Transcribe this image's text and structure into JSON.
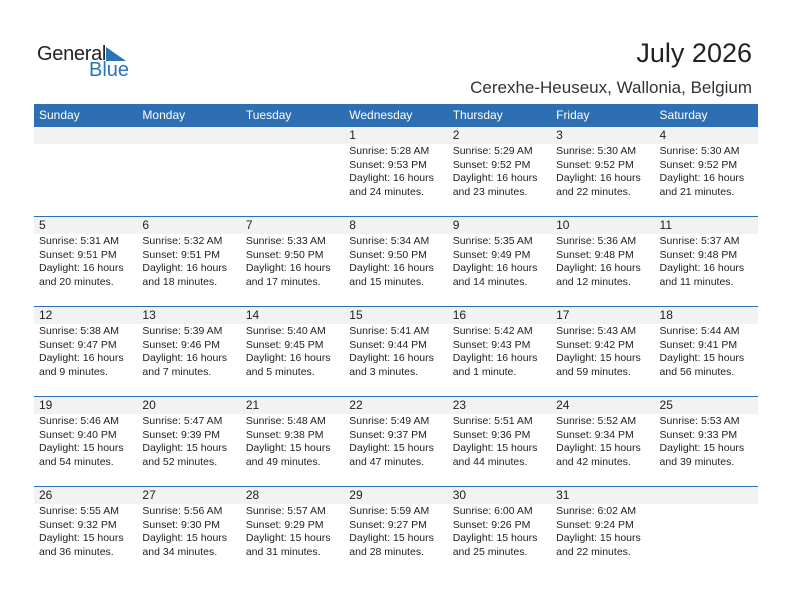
{
  "logo": {
    "text1": "General",
    "text2": "Blue"
  },
  "title": "July 2026",
  "location": "Cerexhe-Heuseux, Wallonia, Belgium",
  "colors": {
    "header": "#2d6fb2",
    "brand": "#2a74b8",
    "date_band": "#f2f2f2"
  },
  "weekdays": [
    "Sunday",
    "Monday",
    "Tuesday",
    "Wednesday",
    "Thursday",
    "Friday",
    "Saturday"
  ],
  "weeks": [
    [
      null,
      null,
      null,
      {
        "day": "1",
        "sunrise": "Sunrise: 5:28 AM",
        "sunset": "Sunset: 9:53 PM",
        "daylight1": "Daylight: 16 hours",
        "daylight2": "and 24 minutes."
      },
      {
        "day": "2",
        "sunrise": "Sunrise: 5:29 AM",
        "sunset": "Sunset: 9:52 PM",
        "daylight1": "Daylight: 16 hours",
        "daylight2": "and 23 minutes."
      },
      {
        "day": "3",
        "sunrise": "Sunrise: 5:30 AM",
        "sunset": "Sunset: 9:52 PM",
        "daylight1": "Daylight: 16 hours",
        "daylight2": "and 22 minutes."
      },
      {
        "day": "4",
        "sunrise": "Sunrise: 5:30 AM",
        "sunset": "Sunset: 9:52 PM",
        "daylight1": "Daylight: 16 hours",
        "daylight2": "and 21 minutes."
      }
    ],
    [
      {
        "day": "5",
        "sunrise": "Sunrise: 5:31 AM",
        "sunset": "Sunset: 9:51 PM",
        "daylight1": "Daylight: 16 hours",
        "daylight2": "and 20 minutes."
      },
      {
        "day": "6",
        "sunrise": "Sunrise: 5:32 AM",
        "sunset": "Sunset: 9:51 PM",
        "daylight1": "Daylight: 16 hours",
        "daylight2": "and 18 minutes."
      },
      {
        "day": "7",
        "sunrise": "Sunrise: 5:33 AM",
        "sunset": "Sunset: 9:50 PM",
        "daylight1": "Daylight: 16 hours",
        "daylight2": "and 17 minutes."
      },
      {
        "day": "8",
        "sunrise": "Sunrise: 5:34 AM",
        "sunset": "Sunset: 9:50 PM",
        "daylight1": "Daylight: 16 hours",
        "daylight2": "and 15 minutes."
      },
      {
        "day": "9",
        "sunrise": "Sunrise: 5:35 AM",
        "sunset": "Sunset: 9:49 PM",
        "daylight1": "Daylight: 16 hours",
        "daylight2": "and 14 minutes."
      },
      {
        "day": "10",
        "sunrise": "Sunrise: 5:36 AM",
        "sunset": "Sunset: 9:48 PM",
        "daylight1": "Daylight: 16 hours",
        "daylight2": "and 12 minutes."
      },
      {
        "day": "11",
        "sunrise": "Sunrise: 5:37 AM",
        "sunset": "Sunset: 9:48 PM",
        "daylight1": "Daylight: 16 hours",
        "daylight2": "and 11 minutes."
      }
    ],
    [
      {
        "day": "12",
        "sunrise": "Sunrise: 5:38 AM",
        "sunset": "Sunset: 9:47 PM",
        "daylight1": "Daylight: 16 hours",
        "daylight2": "and 9 minutes."
      },
      {
        "day": "13",
        "sunrise": "Sunrise: 5:39 AM",
        "sunset": "Sunset: 9:46 PM",
        "daylight1": "Daylight: 16 hours",
        "daylight2": "and 7 minutes."
      },
      {
        "day": "14",
        "sunrise": "Sunrise: 5:40 AM",
        "sunset": "Sunset: 9:45 PM",
        "daylight1": "Daylight: 16 hours",
        "daylight2": "and 5 minutes."
      },
      {
        "day": "15",
        "sunrise": "Sunrise: 5:41 AM",
        "sunset": "Sunset: 9:44 PM",
        "daylight1": "Daylight: 16 hours",
        "daylight2": "and 3 minutes."
      },
      {
        "day": "16",
        "sunrise": "Sunrise: 5:42 AM",
        "sunset": "Sunset: 9:43 PM",
        "daylight1": "Daylight: 16 hours",
        "daylight2": "and 1 minute."
      },
      {
        "day": "17",
        "sunrise": "Sunrise: 5:43 AM",
        "sunset": "Sunset: 9:42 PM",
        "daylight1": "Daylight: 15 hours",
        "daylight2": "and 59 minutes."
      },
      {
        "day": "18",
        "sunrise": "Sunrise: 5:44 AM",
        "sunset": "Sunset: 9:41 PM",
        "daylight1": "Daylight: 15 hours",
        "daylight2": "and 56 minutes."
      }
    ],
    [
      {
        "day": "19",
        "sunrise": "Sunrise: 5:46 AM",
        "sunset": "Sunset: 9:40 PM",
        "daylight1": "Daylight: 15 hours",
        "daylight2": "and 54 minutes."
      },
      {
        "day": "20",
        "sunrise": "Sunrise: 5:47 AM",
        "sunset": "Sunset: 9:39 PM",
        "daylight1": "Daylight: 15 hours",
        "daylight2": "and 52 minutes."
      },
      {
        "day": "21",
        "sunrise": "Sunrise: 5:48 AM",
        "sunset": "Sunset: 9:38 PM",
        "daylight1": "Daylight: 15 hours",
        "daylight2": "and 49 minutes."
      },
      {
        "day": "22",
        "sunrise": "Sunrise: 5:49 AM",
        "sunset": "Sunset: 9:37 PM",
        "daylight1": "Daylight: 15 hours",
        "daylight2": "and 47 minutes."
      },
      {
        "day": "23",
        "sunrise": "Sunrise: 5:51 AM",
        "sunset": "Sunset: 9:36 PM",
        "daylight1": "Daylight: 15 hours",
        "daylight2": "and 44 minutes."
      },
      {
        "day": "24",
        "sunrise": "Sunrise: 5:52 AM",
        "sunset": "Sunset: 9:34 PM",
        "daylight1": "Daylight: 15 hours",
        "daylight2": "and 42 minutes."
      },
      {
        "day": "25",
        "sunrise": "Sunrise: 5:53 AM",
        "sunset": "Sunset: 9:33 PM",
        "daylight1": "Daylight: 15 hours",
        "daylight2": "and 39 minutes."
      }
    ],
    [
      {
        "day": "26",
        "sunrise": "Sunrise: 5:55 AM",
        "sunset": "Sunset: 9:32 PM",
        "daylight1": "Daylight: 15 hours",
        "daylight2": "and 36 minutes."
      },
      {
        "day": "27",
        "sunrise": "Sunrise: 5:56 AM",
        "sunset": "Sunset: 9:30 PM",
        "daylight1": "Daylight: 15 hours",
        "daylight2": "and 34 minutes."
      },
      {
        "day": "28",
        "sunrise": "Sunrise: 5:57 AM",
        "sunset": "Sunset: 9:29 PM",
        "daylight1": "Daylight: 15 hours",
        "daylight2": "and 31 minutes."
      },
      {
        "day": "29",
        "sunrise": "Sunrise: 5:59 AM",
        "sunset": "Sunset: 9:27 PM",
        "daylight1": "Daylight: 15 hours",
        "daylight2": "and 28 minutes."
      },
      {
        "day": "30",
        "sunrise": "Sunrise: 6:00 AM",
        "sunset": "Sunset: 9:26 PM",
        "daylight1": "Daylight: 15 hours",
        "daylight2": "and 25 minutes."
      },
      {
        "day": "31",
        "sunrise": "Sunrise: 6:02 AM",
        "sunset": "Sunset: 9:24 PM",
        "daylight1": "Daylight: 15 hours",
        "daylight2": "and 22 minutes."
      },
      null
    ]
  ]
}
